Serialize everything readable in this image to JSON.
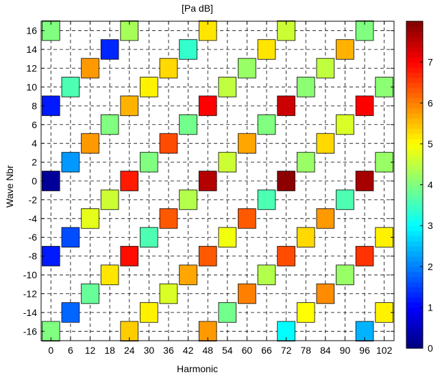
{
  "chart_data": {
    "type": "heatmap",
    "title": "[Pa dB]",
    "xlabel": "Harmonic",
    "ylabel": "Wave Nbr",
    "x_ticks": [
      0,
      6,
      12,
      18,
      24,
      30,
      36,
      42,
      48,
      54,
      60,
      66,
      72,
      78,
      84,
      90,
      96,
      102
    ],
    "y_ticks": [
      16,
      14,
      12,
      10,
      8,
      6,
      4,
      2,
      0,
      -2,
      -4,
      -6,
      -8,
      -10,
      -12,
      -14,
      -16
    ],
    "xlim": [
      -3,
      105
    ],
    "ylim": [
      -17,
      17
    ],
    "grid": true,
    "grid_style": "dashed",
    "colormap": "jet",
    "clim": [
      0,
      8
    ],
    "colorbar_ticks": [
      0,
      1,
      2,
      3,
      4,
      5,
      6,
      7
    ],
    "cells": [
      {
        "x": 0,
        "y": 16,
        "v": 4.0
      },
      {
        "x": 0,
        "y": 8,
        "v": 1.2
      },
      {
        "x": 0,
        "y": 0,
        "v": 0.2
      },
      {
        "x": 0,
        "y": -8,
        "v": 1.2
      },
      {
        "x": 0,
        "y": -16,
        "v": 4.0
      },
      {
        "x": 6,
        "y": 10,
        "v": 3.6
      },
      {
        "x": 6,
        "y": 2,
        "v": 2.2
      },
      {
        "x": 6,
        "y": -6,
        "v": 1.6
      },
      {
        "x": 6,
        "y": -14,
        "v": 1.8
      },
      {
        "x": 12,
        "y": 12,
        "v": 5.8
      },
      {
        "x": 12,
        "y": 4,
        "v": 5.8
      },
      {
        "x": 12,
        "y": -4,
        "v": 4.8
      },
      {
        "x": 12,
        "y": -12,
        "v": 3.8
      },
      {
        "x": 18,
        "y": 14,
        "v": 1.3
      },
      {
        "x": 18,
        "y": 6,
        "v": 4.0
      },
      {
        "x": 18,
        "y": -2,
        "v": 4.6
      },
      {
        "x": 18,
        "y": -10,
        "v": 5.2
      },
      {
        "x": 24,
        "y": 16,
        "v": 4.3
      },
      {
        "x": 24,
        "y": 8,
        "v": 5.6
      },
      {
        "x": 24,
        "y": 0,
        "v": 6.8
      },
      {
        "x": 24,
        "y": -8,
        "v": 6.9
      },
      {
        "x": 24,
        "y": -16,
        "v": 5.4
      },
      {
        "x": 30,
        "y": 10,
        "v": 5.1
      },
      {
        "x": 30,
        "y": 2,
        "v": 4.0
      },
      {
        "x": 30,
        "y": -6,
        "v": 3.6
      },
      {
        "x": 30,
        "y": -14,
        "v": 5.1
      },
      {
        "x": 36,
        "y": 12,
        "v": 5.3
      },
      {
        "x": 36,
        "y": 4,
        "v": 6.4
      },
      {
        "x": 36,
        "y": -4,
        "v": 6.3
      },
      {
        "x": 36,
        "y": -12,
        "v": 4.7
      },
      {
        "x": 42,
        "y": 14,
        "v": 3.4
      },
      {
        "x": 42,
        "y": 6,
        "v": 3.9
      },
      {
        "x": 42,
        "y": -2,
        "v": 4.4
      },
      {
        "x": 42,
        "y": -10,
        "v": 5.7
      },
      {
        "x": 48,
        "y": 16,
        "v": 5.2
      },
      {
        "x": 48,
        "y": 8,
        "v": 7.0
      },
      {
        "x": 48,
        "y": 0,
        "v": 7.6
      },
      {
        "x": 48,
        "y": -8,
        "v": 6.3
      },
      {
        "x": 48,
        "y": -16,
        "v": 5.8
      },
      {
        "x": 54,
        "y": 10,
        "v": 4.5
      },
      {
        "x": 54,
        "y": 2,
        "v": 4.6
      },
      {
        "x": 54,
        "y": -6,
        "v": 4.9
      },
      {
        "x": 54,
        "y": -14,
        "v": 3.9
      },
      {
        "x": 60,
        "y": 12,
        "v": 4.2
      },
      {
        "x": 60,
        "y": 4,
        "v": 5.7
      },
      {
        "x": 60,
        "y": -4,
        "v": 6.3
      },
      {
        "x": 60,
        "y": -12,
        "v": 6.0
      },
      {
        "x": 66,
        "y": 14,
        "v": 5.2
      },
      {
        "x": 66,
        "y": 6,
        "v": 4.0
      },
      {
        "x": 66,
        "y": -2,
        "v": 3.6
      },
      {
        "x": 66,
        "y": -10,
        "v": 4.4
      },
      {
        "x": 72,
        "y": 16,
        "v": 4.6
      },
      {
        "x": 72,
        "y": 8,
        "v": 7.4
      },
      {
        "x": 72,
        "y": 0,
        "v": 7.9
      },
      {
        "x": 72,
        "y": -8,
        "v": 6.4
      },
      {
        "x": 72,
        "y": -16,
        "v": 3.0
      },
      {
        "x": 78,
        "y": 10,
        "v": 4.1
      },
      {
        "x": 78,
        "y": 2,
        "v": 4.2
      },
      {
        "x": 78,
        "y": -6,
        "v": 5.3
      },
      {
        "x": 78,
        "y": -14,
        "v": 5.0
      },
      {
        "x": 84,
        "y": 12,
        "v": 4.5
      },
      {
        "x": 84,
        "y": 4,
        "v": 5.3
      },
      {
        "x": 84,
        "y": -4,
        "v": 5.8
      },
      {
        "x": 84,
        "y": -12,
        "v": 5.9
      },
      {
        "x": 90,
        "y": 14,
        "v": 5.6
      },
      {
        "x": 90,
        "y": 6,
        "v": 4.7
      },
      {
        "x": 90,
        "y": -2,
        "v": 3.6
      },
      {
        "x": 90,
        "y": -10,
        "v": 4.2
      },
      {
        "x": 96,
        "y": 16,
        "v": 4.0
      },
      {
        "x": 96,
        "y": 8,
        "v": 7.0
      },
      {
        "x": 96,
        "y": 0,
        "v": 7.7
      },
      {
        "x": 96,
        "y": -8,
        "v": 6.6
      },
      {
        "x": 96,
        "y": -16,
        "v": 2.4
      },
      {
        "x": 102,
        "y": 10,
        "v": 4.1
      },
      {
        "x": 102,
        "y": 2,
        "v": 4.2
      },
      {
        "x": 102,
        "y": -6,
        "v": 5.1
      },
      {
        "x": 102,
        "y": -14,
        "v": 5.1
      }
    ]
  }
}
